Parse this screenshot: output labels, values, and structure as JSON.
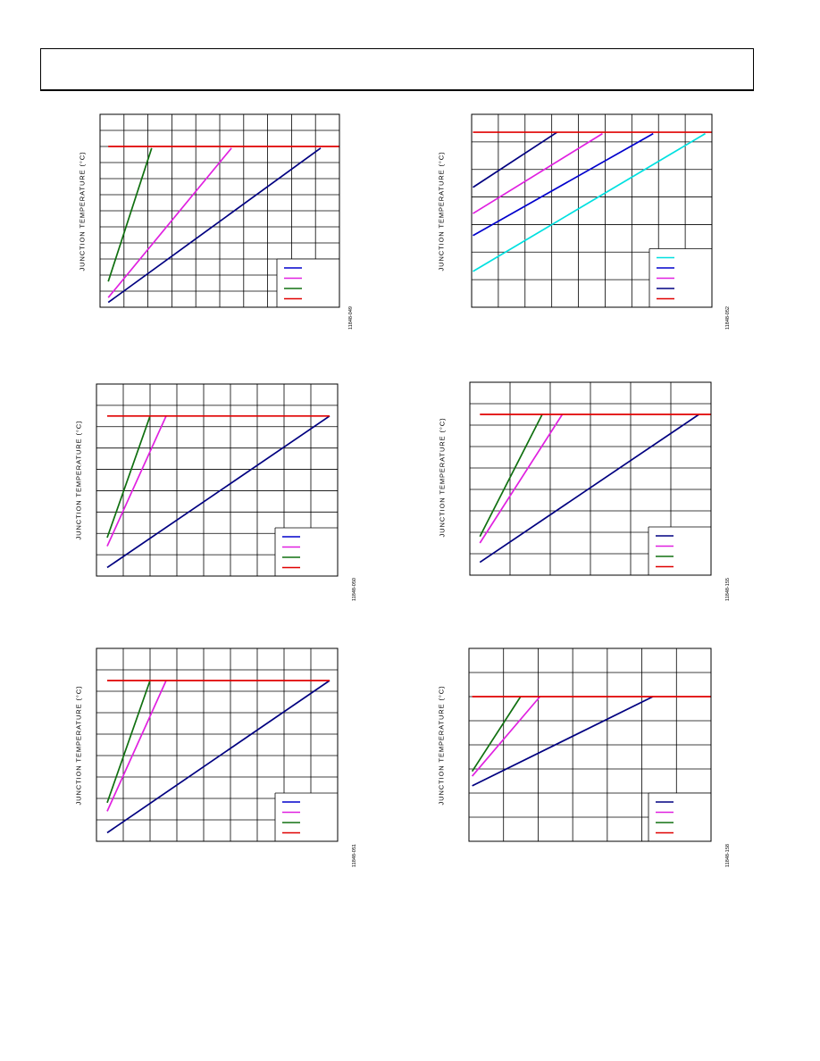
{
  "page": {
    "header": ""
  },
  "chart_data": [
    {
      "type": "line",
      "ylabel": "JUNCTION TEMPERATURE (°C)",
      "figure_id": "11848-049",
      "xlim": [
        0,
        10.2
      ],
      "ylim": [
        0,
        12
      ],
      "grid": true,
      "x_gridlines": 10,
      "y_gridlines": 12,
      "legend_position": "bottom-right",
      "legend_colors": [
        "#0000cc",
        "#e020e0",
        "#107010",
        "#e00000"
      ],
      "series": [
        {
          "color": "#000080",
          "x": [
            0.35,
            9.4
          ],
          "y": [
            0.3,
            9.9
          ]
        },
        {
          "color": "#e020e0",
          "x": [
            0.35,
            5.6
          ],
          "y": [
            0.6,
            9.9
          ]
        },
        {
          "color": "#107010",
          "x": [
            0.35,
            2.2
          ],
          "y": [
            1.6,
            9.9
          ]
        },
        {
          "color": "#e00000",
          "x": [
            0.35,
            10.2
          ],
          "y": [
            10.0,
            10.0
          ]
        }
      ]
    },
    {
      "type": "line",
      "ylabel": "JUNCTION TEMPERATURE (°C)",
      "figure_id": "11848-052",
      "xlim": [
        0,
        9
      ],
      "ylim": [
        0,
        7
      ],
      "grid": true,
      "x_gridlines": 9,
      "y_gridlines": 7,
      "legend_position": "bottom-right",
      "legend_colors": [
        "#00e0e0",
        "#0000cc",
        "#e020e0",
        "#000080",
        "#e00000"
      ],
      "series": [
        {
          "color": "#000080",
          "x": [
            0.05,
            3.2
          ],
          "y": [
            4.35,
            6.35
          ]
        },
        {
          "color": "#e020e0",
          "x": [
            0.05,
            4.9
          ],
          "y": [
            3.4,
            6.3
          ]
        },
        {
          "color": "#0000cc",
          "x": [
            0.05,
            6.8
          ],
          "y": [
            2.6,
            6.3
          ]
        },
        {
          "color": "#00e0e0",
          "x": [
            0.05,
            8.75
          ],
          "y": [
            1.3,
            6.3
          ]
        },
        {
          "color": "#e00000",
          "x": [
            0.05,
            9.0
          ],
          "y": [
            6.35,
            6.35
          ]
        }
      ]
    },
    {
      "type": "line",
      "ylabel": "JUNCTION TEMPERATURE (°C)",
      "figure_id": "11848-050",
      "xlim": [
        0,
        9
      ],
      "ylim": [
        0,
        9
      ],
      "grid": true,
      "x_gridlines": 9,
      "y_gridlines": 9,
      "legend_position": "bottom-right",
      "legend_colors": [
        "#0000cc",
        "#e020e0",
        "#107010",
        "#e00000"
      ],
      "series": [
        {
          "color": "#000080",
          "x": [
            0.4,
            8.7
          ],
          "y": [
            0.4,
            7.5
          ]
        },
        {
          "color": "#e020e0",
          "x": [
            0.4,
            2.6
          ],
          "y": [
            1.4,
            7.5
          ]
        },
        {
          "color": "#107010",
          "x": [
            0.4,
            2.0
          ],
          "y": [
            1.8,
            7.5
          ]
        },
        {
          "color": "#e00000",
          "x": [
            0.4,
            8.7
          ],
          "y": [
            7.5,
            7.5
          ]
        }
      ]
    },
    {
      "type": "line",
      "ylabel": "JUNCTION TEMPERATURE (°C)",
      "figure_id": "11848-155",
      "xlim": [
        0,
        6
      ],
      "ylim": [
        0,
        9
      ],
      "grid": true,
      "x_gridlines": 6,
      "y_gridlines": 9,
      "legend_position": "bottom-right",
      "legend_colors": [
        "#000080",
        "#e020e0",
        "#107010",
        "#e00000"
      ],
      "series": [
        {
          "color": "#000080",
          "x": [
            0.25,
            5.7
          ],
          "y": [
            0.6,
            7.5
          ]
        },
        {
          "color": "#e020e0",
          "x": [
            0.25,
            2.3
          ],
          "y": [
            1.5,
            7.5
          ]
        },
        {
          "color": "#107010",
          "x": [
            0.25,
            1.8
          ],
          "y": [
            1.8,
            7.5
          ]
        },
        {
          "color": "#e00000",
          "x": [
            0.25,
            6.0
          ],
          "y": [
            7.5,
            7.5
          ]
        }
      ]
    },
    {
      "type": "line",
      "ylabel": "JUNCTION TEMPERATURE (°C)",
      "figure_id": "11848-051",
      "xlim": [
        0,
        9
      ],
      "ylim": [
        0,
        9
      ],
      "grid": true,
      "x_gridlines": 9,
      "y_gridlines": 9,
      "legend_position": "bottom-right",
      "legend_colors": [
        "#0000cc",
        "#e020e0",
        "#107010",
        "#e00000"
      ],
      "series": [
        {
          "color": "#000080",
          "x": [
            0.4,
            8.7
          ],
          "y": [
            0.4,
            7.5
          ]
        },
        {
          "color": "#e020e0",
          "x": [
            0.4,
            2.6
          ],
          "y": [
            1.4,
            7.5
          ]
        },
        {
          "color": "#107010",
          "x": [
            0.4,
            2.0
          ],
          "y": [
            1.8,
            7.5
          ]
        },
        {
          "color": "#e00000",
          "x": [
            0.4,
            8.7
          ],
          "y": [
            7.5,
            7.5
          ]
        }
      ]
    },
    {
      "type": "line",
      "ylabel": "JUNCTION TEMPERATURE (°C)",
      "figure_id": "11848-158",
      "xlim": [
        0,
        7.5
      ],
      "ylim": [
        0,
        8
      ],
      "grid": true,
      "x_gridlines": 7,
      "y_gridlines": 8,
      "legend_position": "bottom-right",
      "legend_colors": [
        "#000080",
        "#e020e0",
        "#107010",
        "#e00000"
      ],
      "series": [
        {
          "color": "#000080",
          "x": [
            0.1,
            5.7
          ],
          "y": [
            2.3,
            6.0
          ]
        },
        {
          "color": "#e020e0",
          "x": [
            0.1,
            2.2
          ],
          "y": [
            2.7,
            6.0
          ]
        },
        {
          "color": "#107010",
          "x": [
            0.1,
            1.6
          ],
          "y": [
            2.9,
            6.0
          ]
        },
        {
          "color": "#e00000",
          "x": [
            0.1,
            7.5
          ],
          "y": [
            6.0,
            6.0
          ]
        }
      ]
    }
  ]
}
